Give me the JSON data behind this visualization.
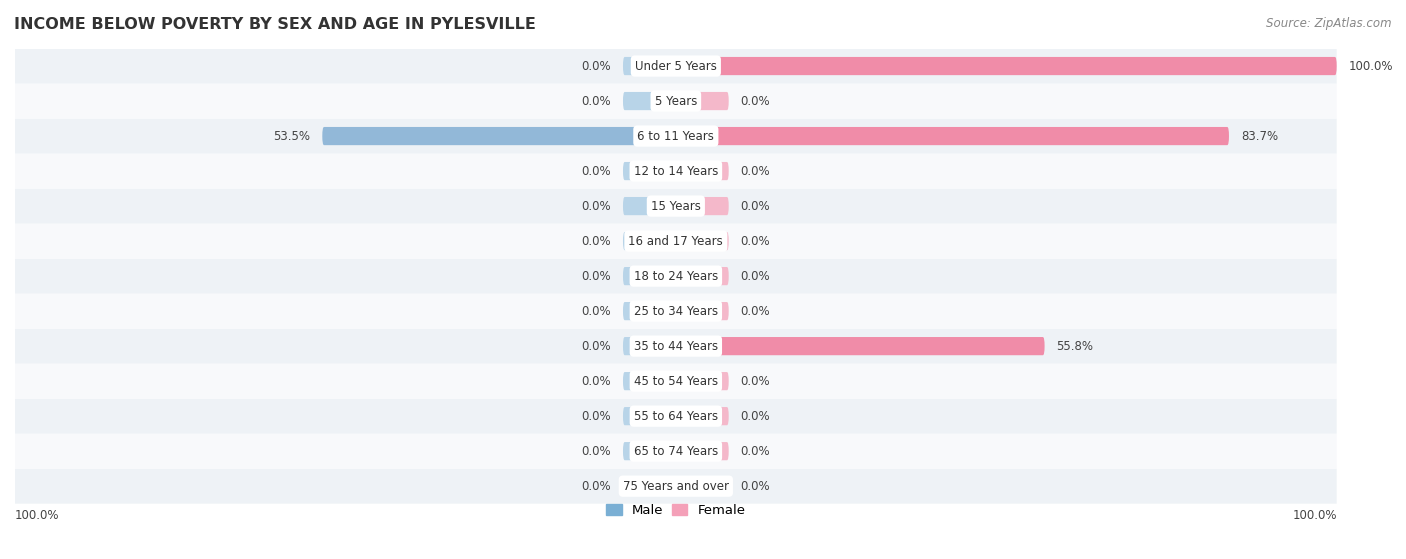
{
  "title": "INCOME BELOW POVERTY BY SEX AND AGE IN PYLESVILLE",
  "source": "Source: ZipAtlas.com",
  "categories": [
    "Under 5 Years",
    "5 Years",
    "6 to 11 Years",
    "12 to 14 Years",
    "15 Years",
    "16 and 17 Years",
    "18 to 24 Years",
    "25 to 34 Years",
    "35 to 44 Years",
    "45 to 54 Years",
    "55 to 64 Years",
    "65 to 74 Years",
    "75 Years and over"
  ],
  "male_values": [
    0.0,
    0.0,
    53.5,
    0.0,
    0.0,
    0.0,
    0.0,
    0.0,
    0.0,
    0.0,
    0.0,
    0.0,
    0.0
  ],
  "female_values": [
    100.0,
    0.0,
    83.7,
    0.0,
    0.0,
    0.0,
    0.0,
    0.0,
    55.8,
    0.0,
    0.0,
    0.0,
    0.0
  ],
  "male_color": "#92b8d8",
  "female_color": "#f08ca8",
  "male_stub_color": "#b8d4e8",
  "female_stub_color": "#f4b8ca",
  "bar_height": 0.52,
  "row_bg_alt": "#eef2f6",
  "row_bg_main": "#f8f9fb",
  "max_value": 100.0,
  "legend_male_color": "#7aafd4",
  "legend_female_color": "#f4a0b8",
  "default_stub": 8.0,
  "label_fontsize": 8.5,
  "title_fontsize": 11.5,
  "source_fontsize": 8.5
}
